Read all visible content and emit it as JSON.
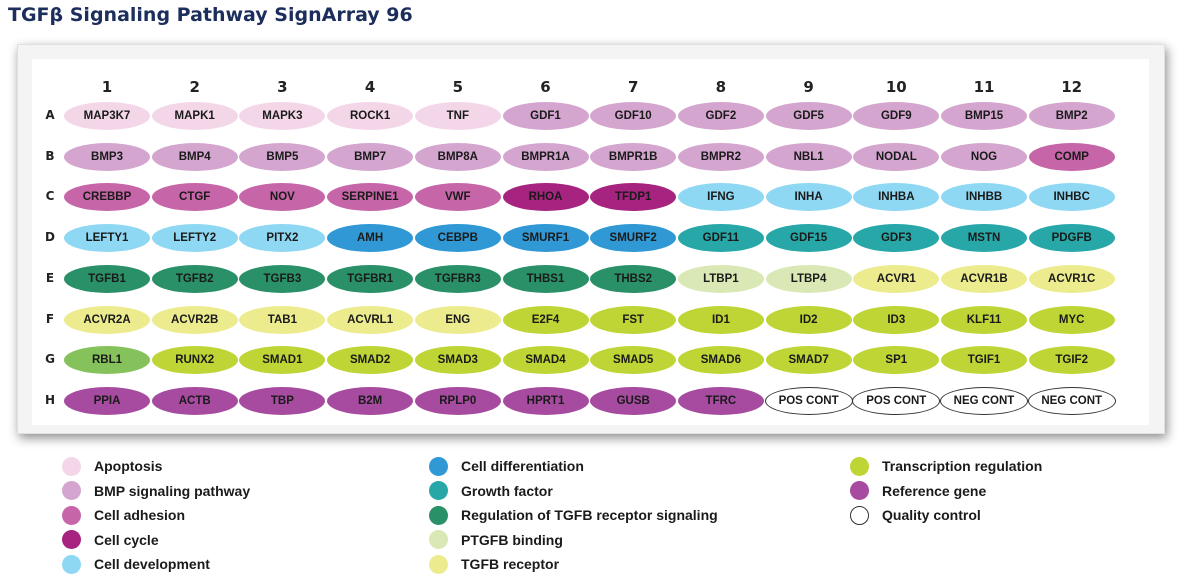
{
  "title": "TGFβ Signaling Pathway SignArray 96",
  "columns": [
    "1",
    "2",
    "3",
    "4",
    "5",
    "6",
    "7",
    "8",
    "9",
    "10",
    "11",
    "12"
  ],
  "rows": [
    {
      "label": "A",
      "wells": [
        {
          "gene": "MAP3K7",
          "cat": "apoptosis"
        },
        {
          "gene": "MAPK1",
          "cat": "apoptosis"
        },
        {
          "gene": "MAPK3",
          "cat": "apoptosis"
        },
        {
          "gene": "ROCK1",
          "cat": "apoptosis"
        },
        {
          "gene": "TNF",
          "cat": "apoptosis"
        },
        {
          "gene": "GDF1",
          "cat": "bmp"
        },
        {
          "gene": "GDF10",
          "cat": "bmp"
        },
        {
          "gene": "GDF2",
          "cat": "bmp"
        },
        {
          "gene": "GDF5",
          "cat": "bmp"
        },
        {
          "gene": "GDF9",
          "cat": "bmp"
        },
        {
          "gene": "BMP15",
          "cat": "bmp"
        },
        {
          "gene": "BMP2",
          "cat": "bmp"
        }
      ]
    },
    {
      "label": "B",
      "wells": [
        {
          "gene": "BMP3",
          "cat": "bmp"
        },
        {
          "gene": "BMP4",
          "cat": "bmp"
        },
        {
          "gene": "BMP5",
          "cat": "bmp"
        },
        {
          "gene": "BMP7",
          "cat": "bmp"
        },
        {
          "gene": "BMP8A",
          "cat": "bmp"
        },
        {
          "gene": "BMPR1A",
          "cat": "bmp"
        },
        {
          "gene": "BMPR1B",
          "cat": "bmp"
        },
        {
          "gene": "BMPR2",
          "cat": "bmp"
        },
        {
          "gene": "NBL1",
          "cat": "bmp"
        },
        {
          "gene": "NODAL",
          "cat": "bmp"
        },
        {
          "gene": "NOG",
          "cat": "bmp"
        },
        {
          "gene": "COMP",
          "cat": "adhesion"
        }
      ]
    },
    {
      "label": "C",
      "wells": [
        {
          "gene": "CREBBP",
          "cat": "adhesion"
        },
        {
          "gene": "CTGF",
          "cat": "adhesion"
        },
        {
          "gene": "NOV",
          "cat": "adhesion"
        },
        {
          "gene": "SERPINE1",
          "cat": "adhesion"
        },
        {
          "gene": "VWF",
          "cat": "adhesion"
        },
        {
          "gene": "RHOA",
          "cat": "cycle"
        },
        {
          "gene": "TFDP1",
          "cat": "cycle"
        },
        {
          "gene": "IFNG",
          "cat": "development"
        },
        {
          "gene": "INHA",
          "cat": "development"
        },
        {
          "gene": "INHBA",
          "cat": "development"
        },
        {
          "gene": "INHBB",
          "cat": "development"
        },
        {
          "gene": "INHBC",
          "cat": "development"
        }
      ]
    },
    {
      "label": "D",
      "wells": [
        {
          "gene": "LEFTY1",
          "cat": "development"
        },
        {
          "gene": "LEFTY2",
          "cat": "development"
        },
        {
          "gene": "PITX2",
          "cat": "development"
        },
        {
          "gene": "AMH",
          "cat": "differentiation"
        },
        {
          "gene": "CEBPB",
          "cat": "differentiation"
        },
        {
          "gene": "SMURF1",
          "cat": "differentiation"
        },
        {
          "gene": "SMURF2",
          "cat": "differentiation"
        },
        {
          "gene": "GDF11",
          "cat": "growth"
        },
        {
          "gene": "GDF15",
          "cat": "growth"
        },
        {
          "gene": "GDF3",
          "cat": "growth"
        },
        {
          "gene": "MSTN",
          "cat": "growth"
        },
        {
          "gene": "PDGFB",
          "cat": "growth"
        }
      ]
    },
    {
      "label": "E",
      "wells": [
        {
          "gene": "TGFB1",
          "cat": "regulation"
        },
        {
          "gene": "TGFB2",
          "cat": "regulation"
        },
        {
          "gene": "TGFB3",
          "cat": "regulation"
        },
        {
          "gene": "TGFBR1",
          "cat": "regulation"
        },
        {
          "gene": "TGFBR3",
          "cat": "regulation"
        },
        {
          "gene": "THBS1",
          "cat": "regulation"
        },
        {
          "gene": "THBS2",
          "cat": "regulation"
        },
        {
          "gene": "LTBP1",
          "cat": "binding"
        },
        {
          "gene": "LTBP4",
          "cat": "binding"
        },
        {
          "gene": "ACVR1",
          "cat": "receptor"
        },
        {
          "gene": "ACVR1B",
          "cat": "receptor"
        },
        {
          "gene": "ACVR1C",
          "cat": "receptor"
        }
      ]
    },
    {
      "label": "F",
      "wells": [
        {
          "gene": "ACVR2A",
          "cat": "receptor"
        },
        {
          "gene": "ACVR2B",
          "cat": "receptor"
        },
        {
          "gene": "TAB1",
          "cat": "receptor"
        },
        {
          "gene": "ACVRL1",
          "cat": "receptor"
        },
        {
          "gene": "ENG",
          "cat": "receptor"
        },
        {
          "gene": "E2F4",
          "cat": "transcription"
        },
        {
          "gene": "FST",
          "cat": "transcription"
        },
        {
          "gene": "ID1",
          "cat": "transcription"
        },
        {
          "gene": "ID2",
          "cat": "transcription"
        },
        {
          "gene": "ID3",
          "cat": "transcription"
        },
        {
          "gene": "KLF11",
          "cat": "transcription"
        },
        {
          "gene": "MYC",
          "cat": "transcription"
        }
      ]
    },
    {
      "label": "G",
      "wells": [
        {
          "gene": "RBL1",
          "cat": "rbl"
        },
        {
          "gene": "RUNX2",
          "cat": "transcription"
        },
        {
          "gene": "SMAD1",
          "cat": "transcription"
        },
        {
          "gene": "SMAD2",
          "cat": "transcription"
        },
        {
          "gene": "SMAD3",
          "cat": "transcription"
        },
        {
          "gene": "SMAD4",
          "cat": "transcription"
        },
        {
          "gene": "SMAD5",
          "cat": "transcription"
        },
        {
          "gene": "SMAD6",
          "cat": "transcription"
        },
        {
          "gene": "SMAD7",
          "cat": "transcription"
        },
        {
          "gene": "SP1",
          "cat": "transcription"
        },
        {
          "gene": "TGIF1",
          "cat": "transcription"
        },
        {
          "gene": "TGIF2",
          "cat": "transcription"
        }
      ]
    },
    {
      "label": "H",
      "wells": [
        {
          "gene": "PPIA",
          "cat": "reference"
        },
        {
          "gene": "ACTB",
          "cat": "reference"
        },
        {
          "gene": "TBP",
          "cat": "reference"
        },
        {
          "gene": "B2M",
          "cat": "reference"
        },
        {
          "gene": "RPLP0",
          "cat": "reference"
        },
        {
          "gene": "HPRT1",
          "cat": "reference"
        },
        {
          "gene": "GUSB",
          "cat": "reference"
        },
        {
          "gene": "TFRC",
          "cat": "reference"
        },
        {
          "gene": "POS CONT",
          "cat": "quality"
        },
        {
          "gene": "POS CONT",
          "cat": "quality"
        },
        {
          "gene": "NEG CONT",
          "cat": "quality"
        },
        {
          "gene": "NEG CONT",
          "cat": "quality"
        }
      ]
    }
  ],
  "category_colors": {
    "apoptosis": "#f3d7e9",
    "bmp": "#d4a5cf",
    "adhesion": "#c765a9",
    "cycle": "#a6237f",
    "development": "#8ed8f4",
    "differentiation": "#3098d4",
    "growth": "#27a7a8",
    "regulation": "#2a9068",
    "binding": "#d9e8b4",
    "receptor": "#ecec8e",
    "transcription": "#bfd435",
    "rbl": "#85c25c",
    "reference": "#a64b9f",
    "quality": "#ffffff"
  },
  "legend": [
    {
      "label": "Apoptosis",
      "color": "#f3d7e9"
    },
    {
      "label": "BMP signaling pathway",
      "color": "#d4a5cf"
    },
    {
      "label": "Cell adhesion",
      "color": "#c765a9"
    },
    {
      "label": "Cell cycle",
      "color": "#a6237f"
    },
    {
      "label": "Cell development",
      "color": "#8ed8f4"
    },
    {
      "label": "Cell differentiation",
      "color": "#3098d4"
    },
    {
      "label": "Growth factor",
      "color": "#27a7a8"
    },
    {
      "label": "Regulation of TGFB receptor signaling",
      "color": "#2a9068"
    },
    {
      "label": "PTGFB binding",
      "color": "#d9e8b4"
    },
    {
      "label": "TGFB receptor",
      "color": "#ecec8e"
    },
    {
      "label": "Transcription regulation",
      "color": "#bfd435"
    },
    {
      "label": "Reference gene",
      "color": "#a64b9f"
    },
    {
      "label": "Quality control",
      "color": "#ffffff"
    }
  ]
}
